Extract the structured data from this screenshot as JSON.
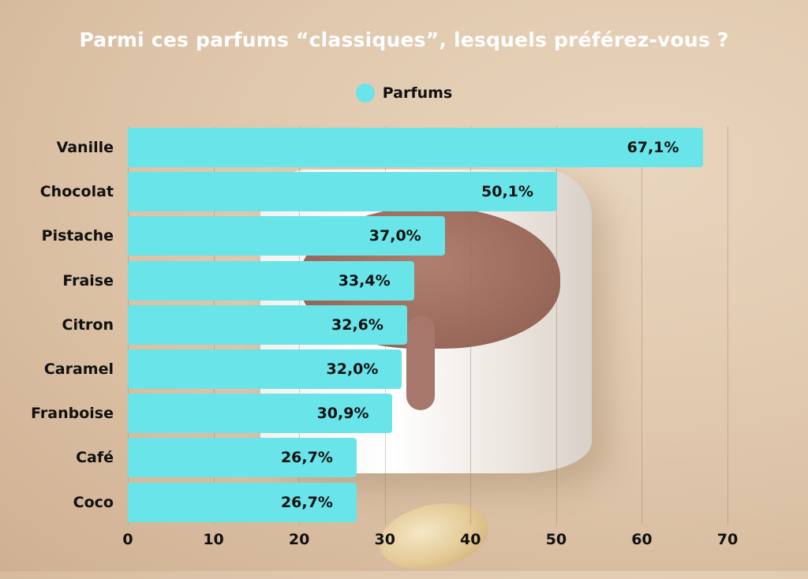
{
  "title": "Parmi ces parfums “classiques”, lesquels préférez-vous ?",
  "legend": {
    "label": "Parfums",
    "color": "#69e4e8"
  },
  "chart_data": {
    "type": "bar",
    "orientation": "horizontal",
    "title": "Parmi ces parfums “classiques”, lesquels préférez-vous ?",
    "xlabel": "",
    "ylabel": "",
    "xlim": [
      0,
      70
    ],
    "grid": true,
    "legend_position": "top",
    "categories": [
      "Vanille",
      "Chocolat",
      "Pistache",
      "Fraise",
      "Citron",
      "Caramel",
      "Franboise",
      "Café",
      "Coco"
    ],
    "series": [
      {
        "name": "Parfums",
        "color": "#69e4e8",
        "values": [
          67.1,
          50.1,
          37.0,
          33.4,
          32.6,
          32.0,
          30.9,
          26.7,
          26.7
        ]
      }
    ],
    "value_labels": [
      "67,1%",
      "50,1%",
      "37,0%",
      "33,4%",
      "32,6%",
      "32,0%",
      "30,9%",
      "26,7%",
      "26,7%"
    ],
    "x_ticks": [
      "0",
      "10",
      "20",
      "30",
      "40",
      "50",
      "60",
      "70"
    ]
  }
}
